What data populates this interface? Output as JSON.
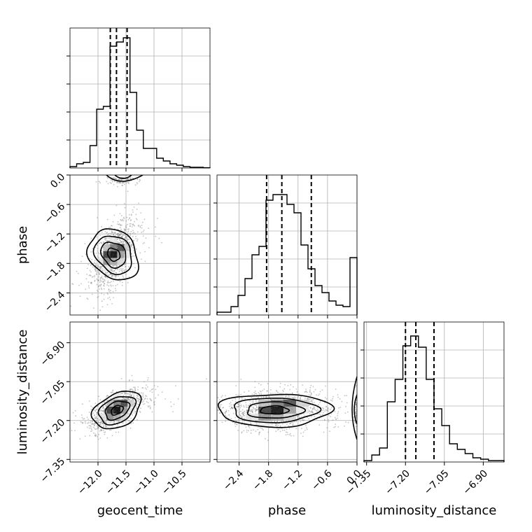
{
  "chart_data": {
    "type": "corner",
    "parameters": [
      "geocent_time",
      "phase",
      "luminosity_distance"
    ],
    "ranges": {
      "geocent_time": [
        -12.5,
        -10.0
      ],
      "phase": [
        -2.85,
        0.0
      ],
      "luminosity_distance": [
        -7.36,
        -6.82
      ]
    },
    "ticks": {
      "geocent_time": {
        "values": [
          -12.0,
          -11.5,
          -11.0,
          -10.5
        ],
        "labels": [
          "−12.0",
          "−11.5",
          "−11.0",
          "−10.5"
        ]
      },
      "phase": {
        "values": [
          -2.4,
          -1.8,
          -1.2,
          -0.6,
          0.0
        ],
        "labels": [
          "−2.4",
          "−1.8",
          "−1.2",
          "−0.6",
          "0.0"
        ]
      },
      "luminosity_distance": {
        "values": [
          -7.35,
          -7.2,
          -7.05,
          -6.9
        ],
        "labels": [
          "−7.35",
          "−7.20",
          "−7.05",
          "−6.90"
        ]
      }
    },
    "quantiles": {
      "geocent_time": [
        -11.78,
        -11.67,
        -11.48
      ],
      "phase": [
        -1.84,
        -1.53,
        -0.93
      ],
      "luminosity_distance": [
        -7.2,
        -7.16,
        -7.09
      ]
    },
    "histograms": {
      "geocent_time": [
        0.01,
        0.03,
        0.04,
        0.16,
        0.42,
        0.44,
        0.87,
        0.9,
        0.93,
        0.54,
        0.27,
        0.14,
        0.14,
        0.07,
        0.05,
        0.03,
        0.02,
        0.01,
        0.005,
        0.005,
        0.002
      ],
      "phase": [
        0.02,
        0.02,
        0.06,
        0.14,
        0.26,
        0.43,
        0.49,
        0.82,
        0.86,
        0.86,
        0.79,
        0.73,
        0.5,
        0.33,
        0.21,
        0.16,
        0.1,
        0.07,
        0.06,
        0.41
      ],
      "luminosity_distance": [
        0.01,
        0.05,
        0.1,
        0.43,
        0.59,
        0.83,
        0.9,
        0.82,
        0.59,
        0.38,
        0.26,
        0.13,
        0.09,
        0.06,
        0.03,
        0.02,
        0.01,
        0.01
      ]
    },
    "hist_ylim": [
      0,
      1.0
    ],
    "density_2d": {
      "phase_vs_geocent_time": {
        "center": [
          -11.72,
          -1.62
        ],
        "sd": [
          0.19,
          0.36
        ],
        "rho": 0.55
      },
      "luminosity_distance_vs_geocent_time": {
        "center": [
          -11.66,
          -7.16
        ],
        "sd": [
          0.22,
          0.04
        ],
        "rho": 0.62
      },
      "luminosity_distance_vs_phase": {
        "center": [
          -1.68,
          -7.16
        ],
        "sd": [
          0.55,
          0.04
        ],
        "rho": 0.05
      }
    },
    "grid": true
  }
}
